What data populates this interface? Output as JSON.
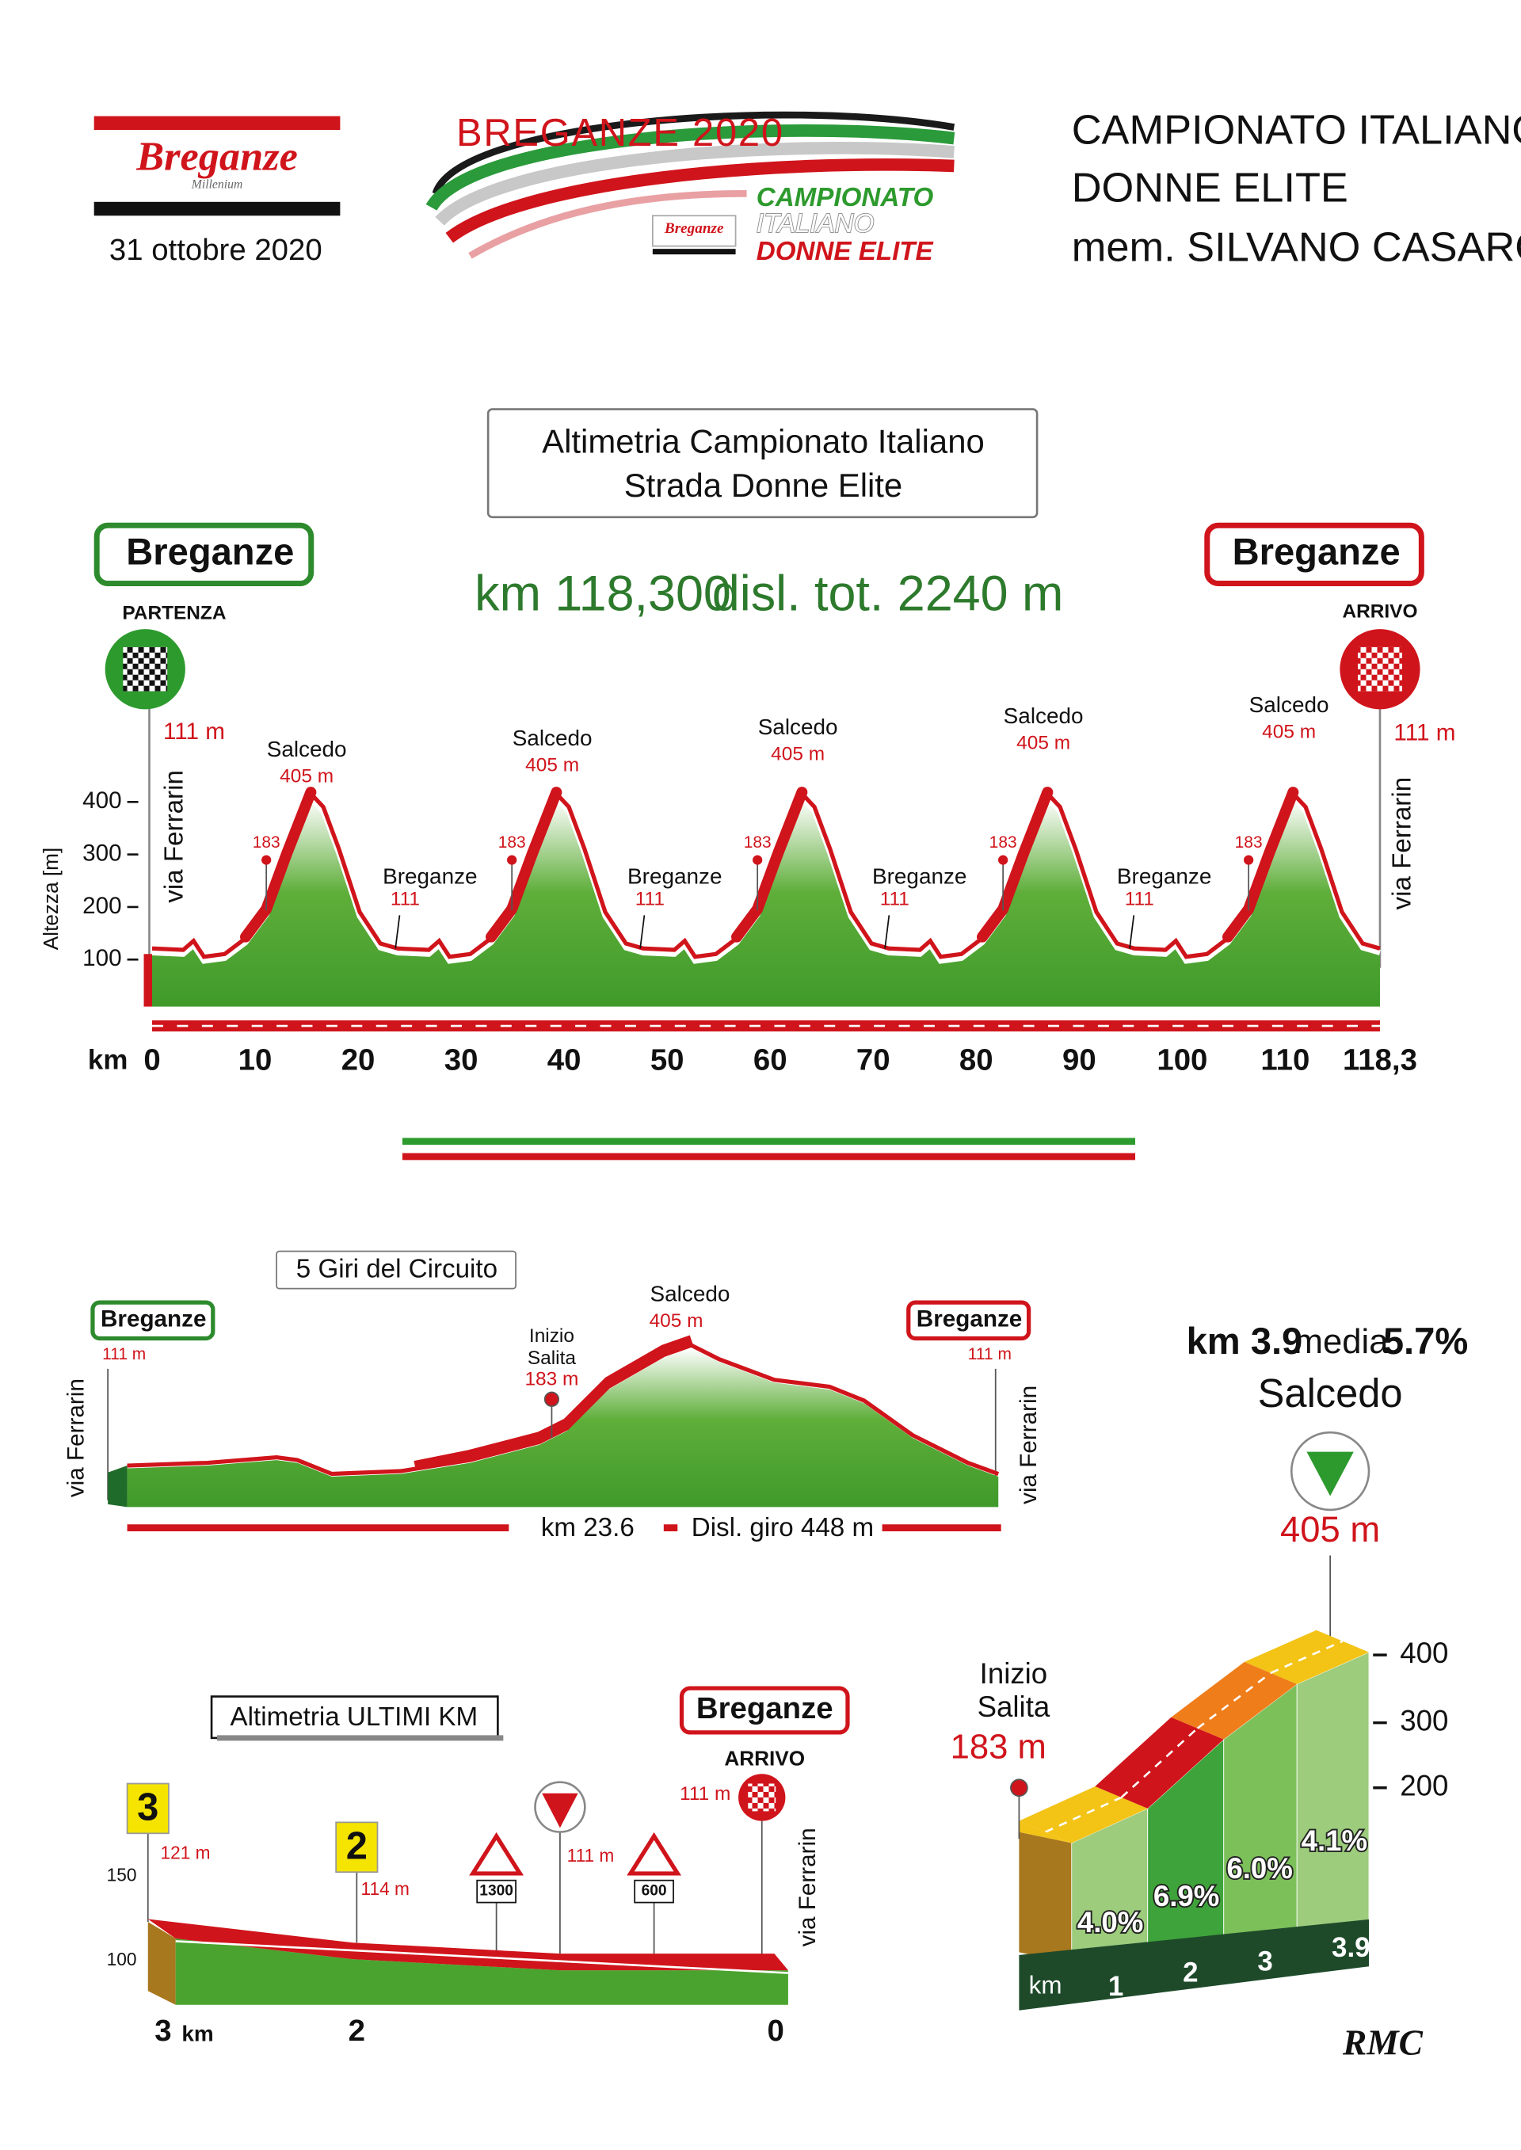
{
  "header": {
    "organizer_logo": {
      "name": "Breganze",
      "subtitle": "Millenium"
    },
    "date": "31 ottobre 2020",
    "event_logo": {
      "title": "BREGANZE 2020",
      "badge": "Breganze",
      "lines": [
        "CAMPIONATO",
        "ITALIANO",
        "DONNE ELITE"
      ]
    },
    "event_title": [
      "CAMPIONATO ITALIANO",
      "DONNE ELITE",
      "mem. SILVANO CASAROTTO"
    ]
  },
  "main_profile": {
    "title": [
      "Altimetria Campionato Italiano",
      "Strada Donne Elite"
    ],
    "distance": "km 118,300",
    "climbing": "disl. tot. 2240 m",
    "start": {
      "town": "Breganze",
      "label": "PARTENZA",
      "altitude": "111 m",
      "street": "via Ferrarin"
    },
    "finish": {
      "town": "Breganze",
      "label": "ARRIVO",
      "altitude": "111 m",
      "street": "via Ferrarin"
    },
    "y_axis_title": "Altezza [m]",
    "y_ticks": [
      "400",
      "300",
      "200",
      "100"
    ],
    "x_unit": "km",
    "x_ticks": [
      "0",
      "10",
      "20",
      "30",
      "40",
      "50",
      "60",
      "70",
      "80",
      "90",
      "100",
      "110",
      "118,3"
    ],
    "climbs": [
      {
        "name": "Salcedo",
        "altitude": "405 m",
        "climb_start": "183"
      },
      {
        "name": "Salcedo",
        "altitude": "405 m",
        "climb_start": "183"
      },
      {
        "name": "Salcedo",
        "altitude": "405 m",
        "climb_start": "183"
      },
      {
        "name": "Salcedo",
        "altitude": "405 m",
        "climb_start": "183"
      },
      {
        "name": "Salcedo",
        "altitude": "405 m",
        "climb_start": "183"
      }
    ],
    "valleys": [
      {
        "name": "Breganze",
        "altitude": "111"
      },
      {
        "name": "Breganze",
        "altitude": "111"
      },
      {
        "name": "Breganze",
        "altitude": "111"
      },
      {
        "name": "Breganze",
        "altitude": "111"
      }
    ]
  },
  "circuit": {
    "title": "5 Giri del Circuito",
    "start": {
      "town": "Breganze",
      "altitude": "111 m",
      "street": "via Ferrarin"
    },
    "finish": {
      "town": "Breganze",
      "altitude": "111 m",
      "street": "via Ferrarin"
    },
    "climb_start": {
      "label": [
        "Inizio",
        "Salita"
      ],
      "altitude": "183 m"
    },
    "summit": {
      "name": "Salcedo",
      "altitude": "405 m"
    },
    "distance": "km 23.6",
    "climbing": "Disl. giro 448 m"
  },
  "climb_detail": {
    "length": "km 3.9",
    "average_label": "media",
    "average": "5.7%",
    "name": "Salcedo",
    "summit_altitude": "405 m",
    "start": {
      "label": [
        "Inizio",
        "Salita"
      ],
      "altitude": "183 m"
    },
    "y_ticks": [
      "400",
      "300",
      "200"
    ],
    "x_unit": "km",
    "x_ticks": [
      "1",
      "2",
      "3",
      "3.9"
    ],
    "gradients": [
      "4.0%",
      "6.9%",
      "6.0%",
      "4.1%"
    ]
  },
  "last_km": {
    "title": "Altimetria ULTIMI KM",
    "finish": {
      "town": "Breganze",
      "label": "ARRIVO",
      "altitude": "111 m",
      "street": "via Ferrarin"
    },
    "markers": [
      {
        "km": "3",
        "altitude": "121 m"
      },
      {
        "km": "2",
        "altitude": "114 m"
      }
    ],
    "flamme_rouge_altitude": "111 m",
    "signs": [
      "1300",
      "600"
    ],
    "y_ticks": [
      "150",
      "100"
    ],
    "x_labels": [
      "3",
      "2",
      "0"
    ],
    "x_unit": "km"
  },
  "credit": "RMC"
}
